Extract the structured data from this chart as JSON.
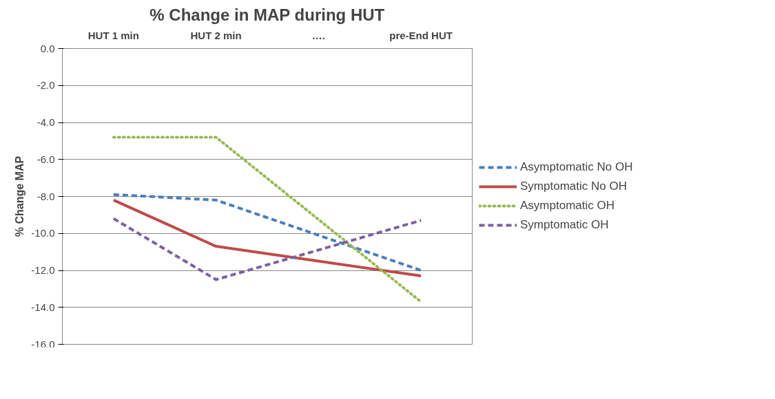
{
  "chart_data": {
    "type": "line",
    "title": "% Change in MAP during HUT",
    "ylabel": "% Change MAP",
    "categories": [
      "HUT 1 min",
      "HUT 2 min",
      "….",
      "pre-End HUT"
    ],
    "series": [
      {
        "name": "Asymptomatic No OH",
        "color": "#4a7ebb",
        "line_style": "dashed",
        "values": [
          -7.9,
          -8.2,
          null,
          -12.0
        ]
      },
      {
        "name": "Symptomatic No OH",
        "color": "#be4b48",
        "line_style": "solid",
        "values": [
          -8.2,
          -10.7,
          null,
          -12.3
        ]
      },
      {
        "name": "Asymptomatic OH",
        "color": "#98b954",
        "line_style": "dotted",
        "values": [
          -4.8,
          -4.8,
          null,
          -13.7
        ]
      },
      {
        "name": "Symptomatic OH",
        "color": "#7d60a0",
        "line_style": "dashed",
        "values": [
          -9.2,
          -12.5,
          null,
          -9.3
        ]
      }
    ],
    "ylim": [
      -16,
      0
    ],
    "yticks": [
      {
        "value": 0,
        "label": "0.0"
      },
      {
        "value": -2,
        "label": "-2.0"
      },
      {
        "value": -4,
        "label": "-4.0"
      },
      {
        "value": -6,
        "label": "-6.0"
      },
      {
        "value": -8,
        "label": "-8.0"
      },
      {
        "value": -10,
        "label": "-10.0"
      },
      {
        "value": -12,
        "label": "-12.0"
      },
      {
        "value": -14,
        "label": "-14.0"
      },
      {
        "value": -16,
        "label": "-16.0"
      }
    ],
    "grid": "y",
    "legend": "right",
    "marker": "none"
  }
}
